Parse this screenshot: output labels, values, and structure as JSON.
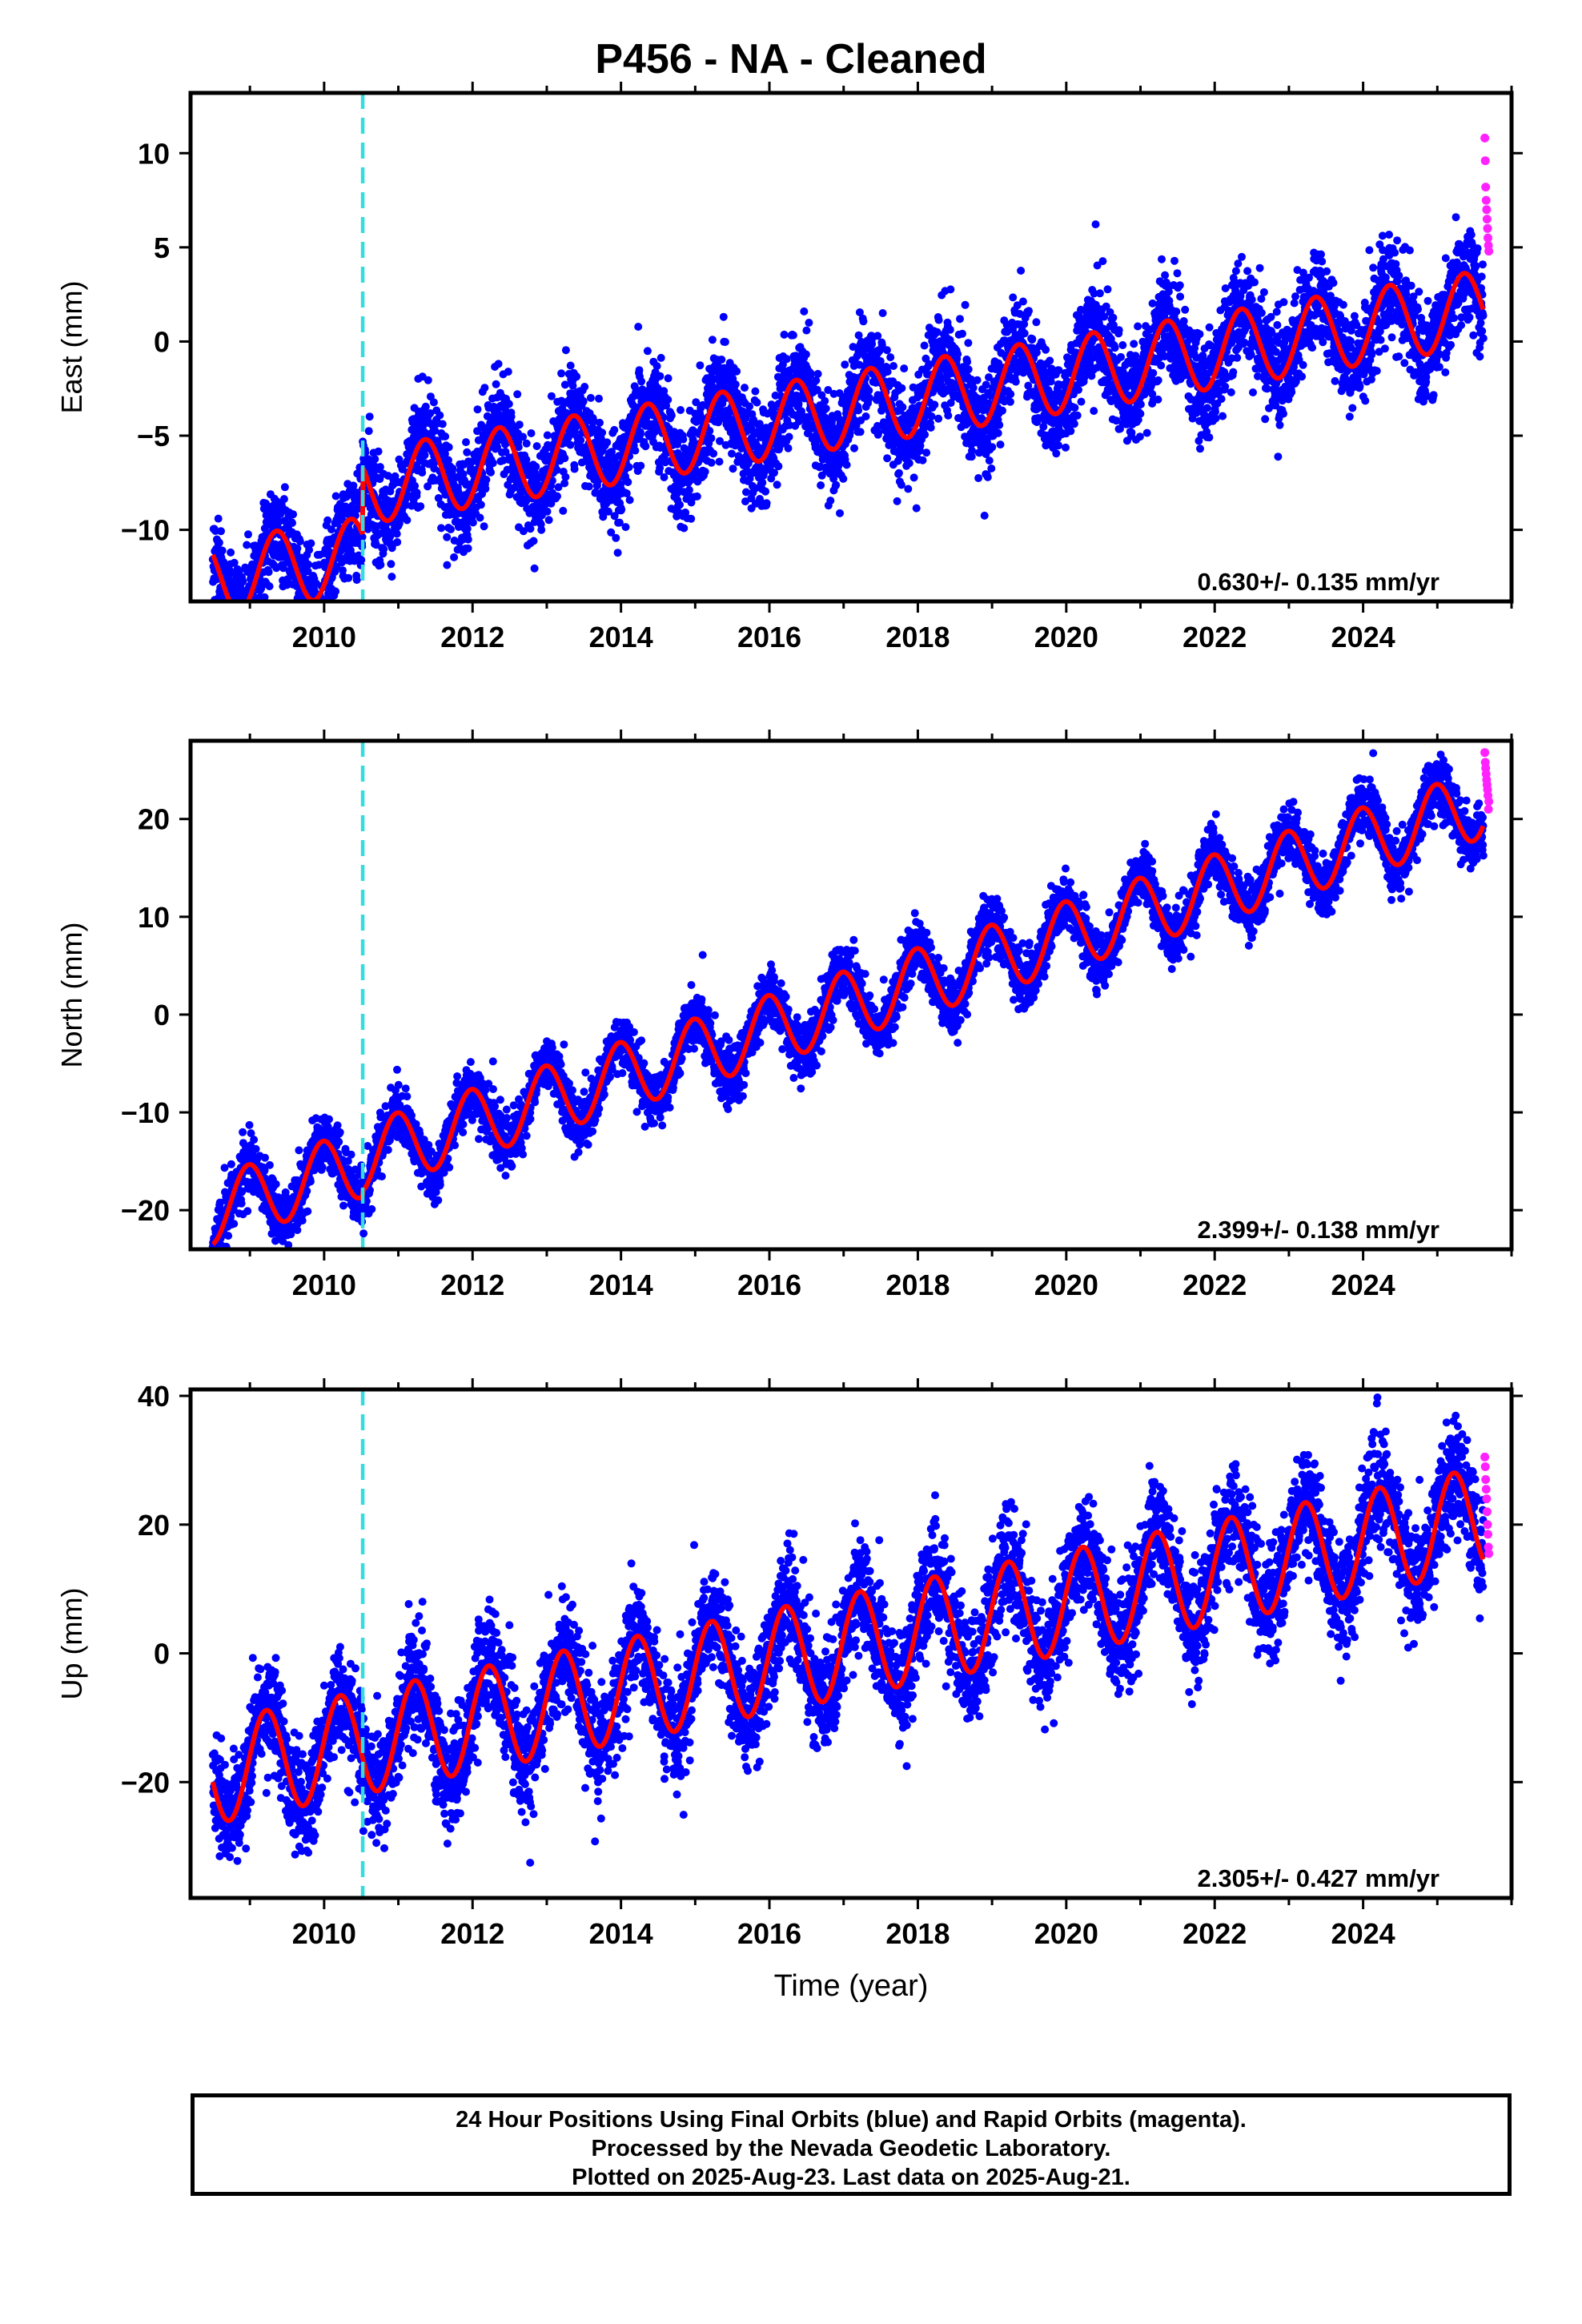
{
  "title": "P456  - NA - Cleaned",
  "colors": {
    "final_orbits": "#0000ff",
    "rapid_orbits": "#ff22ff",
    "model_fit": "#ff0000",
    "antenna_change": "#33dddd"
  },
  "chart_data": [
    {
      "type": "scatter",
      "component": "east",
      "ylabel": "East (mm)",
      "xlabel": "",
      "xlim": [
        2008.2,
        2026.0
      ],
      "ylim": [
        -13.8,
        13.2
      ],
      "yticks": [
        -10,
        -5,
        0,
        5,
        10
      ],
      "xticks": [
        2010,
        2012,
        2014,
        2016,
        2018,
        2020,
        2022,
        2024
      ],
      "velocity": "0.630+/- 0.135 mm/yr",
      "break_year": 2010.52,
      "model": {
        "start": 2008.5,
        "end": 2025.62,
        "intercept": -9.0,
        "rate": 0.63,
        "ref_year": 2008.5,
        "amplitude": 2.0,
        "phase_peak": 0.86,
        "offset_at_break": 3.6,
        "noise": 1.3
      },
      "rapid_values": [
        10.8,
        9.6,
        8.2,
        7.5,
        7.0,
        6.5,
        6.0,
        5.5,
        5.1,
        4.8
      ]
    },
    {
      "type": "scatter",
      "component": "north",
      "ylabel": "North (mm)",
      "xlabel": "",
      "xlim": [
        2008.2,
        2026.0
      ],
      "ylim": [
        -24.0,
        28.0
      ],
      "yticks": [
        -20,
        -10,
        0,
        10,
        20
      ],
      "xticks": [
        2010,
        2012,
        2014,
        2016,
        2018,
        2020,
        2022,
        2024
      ],
      "velocity": "2.399+/- 0.138 mm/yr",
      "break_year": 2010.52,
      "model": {
        "start": 2008.5,
        "end": 2025.62,
        "intercept": -19.5,
        "rate": 2.399,
        "ref_year": 2008.5,
        "amplitude": 3.5,
        "phase_peak": 0.48,
        "offset_at_break": 0.5,
        "noise": 1.4
      },
      "rapid_values": [
        26.8,
        25.8,
        25.2,
        24.6,
        24.0,
        23.5,
        23.0,
        22.4,
        21.0,
        21.8
      ]
    },
    {
      "type": "scatter",
      "component": "up",
      "ylabel": "Up (mm)",
      "xlabel": "Time (year)",
      "xlim": [
        2008.2,
        2026.0
      ],
      "ylim": [
        -38.0,
        41.0
      ],
      "yticks": [
        -20,
        0,
        20,
        40
      ],
      "xticks": [
        2010,
        2012,
        2014,
        2016,
        2018,
        2020,
        2022,
        2024
      ],
      "velocity": "2.305+/- 0.427 mm/yr",
      "break_year": 2010.52,
      "model": {
        "start": 2008.5,
        "end": 2025.62,
        "intercept": -18.5,
        "rate": 2.305,
        "ref_year": 2008.5,
        "amplitude": 8.0,
        "phase_peak": 0.72,
        "offset_at_break": 0.0,
        "noise": 4.2
      },
      "rapid_values": [
        30.5,
        29.0,
        27.0,
        25.5,
        24.0,
        22.0,
        20.0,
        18.5,
        16.5,
        15.5
      ]
    }
  ],
  "footer": {
    "line1": "24 Hour Positions Using Final Orbits (blue) and Rapid Orbits (magenta).",
    "line2": "Processed by the Nevada Geodetic Laboratory.",
    "line3": "Plotted on 2025-Aug-23. Last data on 2025-Aug-21."
  }
}
